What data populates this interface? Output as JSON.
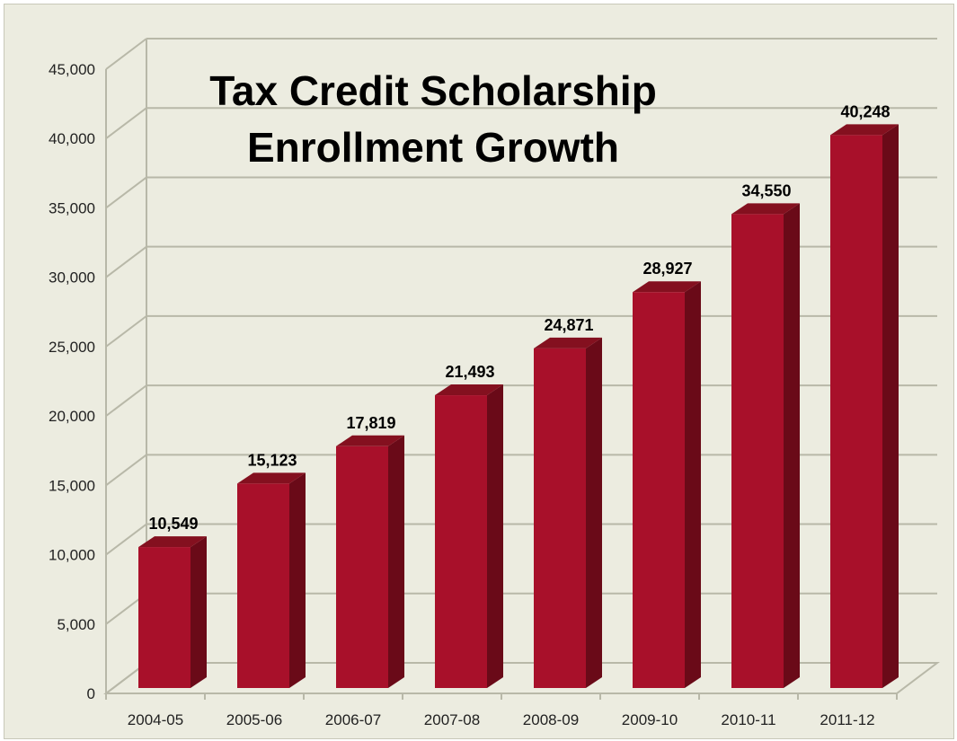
{
  "chart_data": {
    "type": "bar",
    "title_lines": [
      "Tax Credit Scholarship",
      "Enrollment Growth"
    ],
    "categories": [
      "2004-05",
      "2005-06",
      "2006-07",
      "2007-08",
      "2008-09",
      "2009-10",
      "2010-11",
      "2011-12"
    ],
    "values": [
      10549,
      15123,
      17819,
      21493,
      24871,
      28927,
      34550,
      40248
    ],
    "value_labels": [
      "10,549",
      "15,123",
      "17,819",
      "21,493",
      "24,871",
      "28,927",
      "34,550",
      "40,248"
    ],
    "y_ticks": [
      "0",
      "5,000",
      "10,000",
      "15,000",
      "20,000",
      "25,000",
      "30,000",
      "35,000",
      "40,000",
      "45,000"
    ],
    "ylim": [
      0,
      45000
    ],
    "xlabel": "",
    "ylabel": "",
    "grid": true,
    "three_d": true,
    "colors": {
      "bar_front": "#a8102a",
      "bar_side": "#6a0a18",
      "bar_top": "#84101f",
      "background": "#ecece0",
      "gridline": "#b8b8a8"
    }
  }
}
